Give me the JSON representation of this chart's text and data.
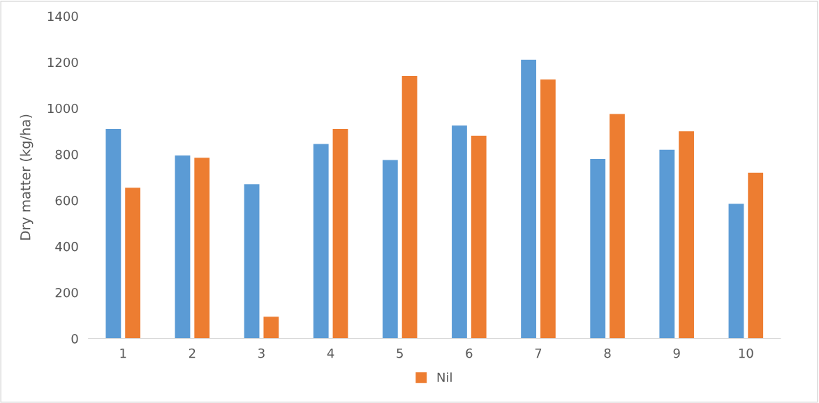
{
  "chart_data": {
    "type": "bar",
    "ylabel": "Dry matter (kg/ha)",
    "categories": [
      "1",
      "2",
      "3",
      "4",
      "5",
      "6",
      "7",
      "8",
      "9",
      "10"
    ],
    "series": [
      {
        "color": "#5b9bd5",
        "values": [
          910,
          795,
          670,
          845,
          775,
          925,
          1210,
          780,
          820,
          585
        ]
      },
      {
        "name": "Nil",
        "color": "#ed7d31",
        "values": [
          655,
          785,
          95,
          910,
          1140,
          880,
          1125,
          975,
          900,
          720
        ]
      }
    ],
    "ylim": [
      0,
      1400
    ],
    "yticks": [
      0,
      200,
      400,
      600,
      800,
      1000,
      1200,
      1400
    ],
    "grid": false,
    "legend": "bottom"
  }
}
